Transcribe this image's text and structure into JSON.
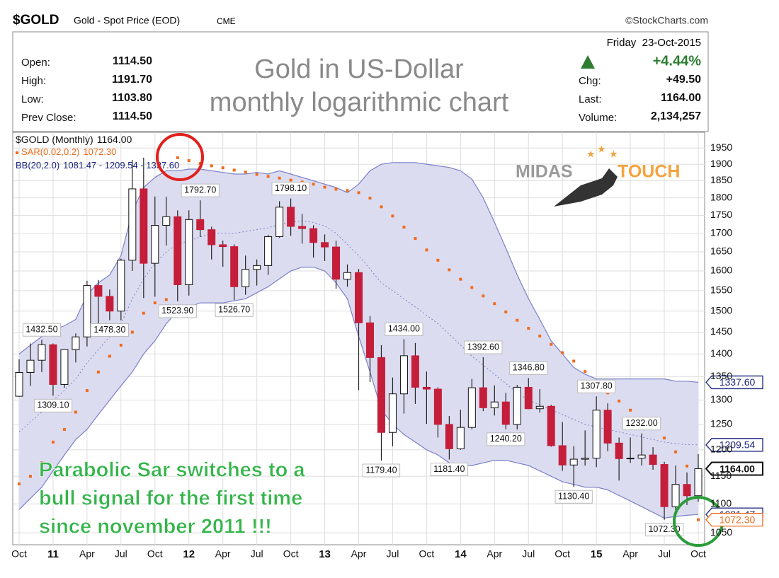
{
  "chart_data": {
    "type": "candlestick",
    "ticker": "$GOLD",
    "subtitle": "Gold - Spot Price (EOD)",
    "exchange": "CME",
    "source": "©StockCharts.com",
    "quote": {
      "date": "Friday  23-Oct-2015",
      "change_pct": "+4.44%",
      "left": [
        {
          "label": "Open:",
          "value": "1114.50"
        },
        {
          "label": "High:",
          "value": "1191.70"
        },
        {
          "label": "Low:",
          "value": "1103.80"
        },
        {
          "label": "Prev Close:",
          "value": "1114.50"
        }
      ],
      "right": [
        {
          "label": "Chg:",
          "value": "+49.50"
        },
        {
          "label": "Last:",
          "value": "1164.00"
        },
        {
          "label": "Volume:",
          "value": "2,134,257"
        }
      ]
    },
    "title_lines": [
      "Gold in US-Dollar",
      "monthly logarithmic chart"
    ],
    "note_lines": [
      "Parabolic Sar switches to a",
      "bull signal for the first time",
      "since november 2011 !!!"
    ],
    "logo": {
      "left": "MIDAS",
      "right": "TOUCH"
    },
    "log_scale": true,
    "grid": true,
    "ylim": [
      1030,
      2000
    ],
    "yticks": [
      1050,
      1100,
      1150,
      1200,
      1250,
      1300,
      1350,
      1400,
      1450,
      1500,
      1550,
      1600,
      1650,
      1700,
      1750,
      1800,
      1850,
      1900,
      1950
    ],
    "categories": [
      "Oct",
      null,
      null,
      "11",
      null,
      null,
      "Apr",
      null,
      null,
      "Jul",
      null,
      null,
      "Oct",
      null,
      null,
      "12",
      null,
      null,
      "Apr",
      null,
      null,
      "Jul",
      null,
      null,
      "Oct",
      null,
      null,
      "13",
      null,
      null,
      "Apr",
      null,
      null,
      "Jul",
      null,
      null,
      "Oct",
      null,
      null,
      "14",
      null,
      null,
      "Apr",
      null,
      null,
      "Jul",
      null,
      null,
      "Oct",
      null,
      null,
      "15",
      null,
      null,
      "Apr",
      null,
      null,
      "Jul",
      null,
      null,
      "Oct"
    ],
    "series": [
      {
        "name": "$GOLD (Monthly)",
        "type": "candlestick",
        "up_color": "#ffffff",
        "down_color": "#c41e3a",
        "last_label": "1164.00",
        "open": [
          1308,
          1359,
          1386,
          1421,
          1333,
          1410,
          1439,
          1563,
          1536,
          1500,
          1628,
          1826,
          1620,
          1722,
          1746,
          1565,
          1738,
          1710,
          1669,
          1664,
          1560,
          1604,
          1614,
          1691,
          1773,
          1719,
          1713,
          1675,
          1663,
          1579,
          1596,
          1472,
          1392,
          1234,
          1313,
          1396,
          1327,
          1323,
          1250,
          1202,
          1244,
          1326,
          1284,
          1296,
          1250,
          1327,
          1282,
          1287,
          1208,
          1171,
          1182,
          1184,
          1279,
          1213,
          1183,
          1184,
          1190,
          1172,
          1095,
          1135,
          1114.5
        ],
        "high": [
          1388,
          1424,
          1432.5,
          1424,
          1411,
          1447,
          1575,
          1577,
          1553,
          1632,
          1913,
          1920,
          1804,
          1803,
          1764,
          1764,
          1792.7,
          1718,
          1680,
          1670,
          1640,
          1630,
          1696,
          1790,
          1798.1,
          1754,
          1722,
          1697,
          1680,
          1617,
          1605,
          1488,
          1420,
          1348,
          1434,
          1425,
          1361,
          1327,
          1267,
          1280,
          1345,
          1392.6,
          1331,
          1315,
          1332,
          1346.8,
          1323,
          1290,
          1255,
          1207,
          1238,
          1307.8,
          1293,
          1224,
          1224,
          1232,
          1205,
          1177,
          1170,
          1157,
          1191.7
        ],
        "low": [
          1307,
          1330,
          1360,
          1309.1,
          1326,
          1381,
          1417,
          1462,
          1478.3,
          1478,
          1600,
          1532,
          1535,
          1667,
          1523.9,
          1538,
          1690,
          1630,
          1611,
          1526.7,
          1540,
          1563,
          1590,
          1688,
          1693,
          1672,
          1635,
          1626,
          1555,
          1560,
          1321,
          1338,
          1179.4,
          1207,
          1272,
          1292,
          1251,
          1224,
          1181.4,
          1200,
          1240,
          1277,
          1268,
          1240.2,
          1240,
          1281,
          1274,
          1206,
          1160,
          1130.4,
          1170,
          1167,
          1197,
          1142,
          1175,
          1170,
          1162,
          1072.3,
          1077,
          1098,
          1103.8
        ],
        "close": [
          1359,
          1386,
          1421,
          1333,
          1410,
          1439,
          1563,
          1536,
          1500,
          1628,
          1826,
          1620,
          1722,
          1746,
          1565,
          1738,
          1710,
          1669,
          1664,
          1560,
          1604,
          1614,
          1691,
          1773,
          1719,
          1713,
          1675,
          1663,
          1579,
          1596,
          1472,
          1392,
          1234,
          1313,
          1396,
          1327,
          1323,
          1250,
          1202,
          1244,
          1326,
          1284,
          1296,
          1250,
          1327,
          1282,
          1287,
          1208,
          1171,
          1182,
          1184,
          1279,
          1213,
          1183,
          1184,
          1190,
          1172,
          1095,
          1135,
          1114.5,
          1164
        ],
        "high_labels": [
          null,
          null,
          "1432.50",
          null,
          null,
          null,
          null,
          null,
          null,
          null,
          null,
          null,
          null,
          null,
          null,
          null,
          "1792.70",
          null,
          null,
          null,
          null,
          null,
          null,
          null,
          "1798.10",
          null,
          null,
          null,
          null,
          null,
          null,
          null,
          null,
          null,
          "1434.00",
          null,
          null,
          null,
          null,
          null,
          null,
          "1392.60",
          null,
          null,
          null,
          "1346.80",
          null,
          null,
          null,
          null,
          null,
          "1307.80",
          null,
          null,
          null,
          "1232.00",
          null,
          null,
          null,
          null,
          null
        ],
        "low_labels": [
          null,
          null,
          null,
          "1309.10",
          null,
          null,
          null,
          null,
          "1478.30",
          null,
          null,
          null,
          null,
          null,
          "1523.90",
          null,
          null,
          null,
          null,
          "1526.70",
          null,
          null,
          null,
          null,
          null,
          null,
          null,
          null,
          null,
          null,
          null,
          null,
          "1179.40",
          null,
          null,
          null,
          null,
          null,
          "1181.40",
          null,
          null,
          null,
          null,
          "1240.20",
          null,
          null,
          null,
          null,
          null,
          "1130.40",
          null,
          null,
          null,
          null,
          null,
          null,
          null,
          "1072.30",
          null,
          null,
          null
        ]
      },
      {
        "name": "SAR(0.02,0.2)",
        "type": "dots",
        "color": "#f26a1b",
        "last_label": "1072.30",
        "values": [
          1136,
          1150,
          1175,
          1215,
          1240,
          1275,
          1320,
          1360,
          1395,
          1420,
          1450,
          1495,
          1520,
          1528,
          1920,
          1911,
          1902,
          1895,
          1889,
          1882,
          1876,
          1869,
          1863,
          1858,
          1852,
          1846,
          1840,
          1831,
          1825,
          1821,
          1815,
          1799,
          1774,
          1748,
          1717,
          1686,
          1655,
          1628,
          1603,
          1579,
          1558,
          1537,
          1518,
          1498,
          1478,
          1459,
          1441,
          1422,
          1403,
          1384,
          1361,
          1338,
          1315,
          1298,
          1279,
          1261,
          1244,
          1223,
          1196,
          1169,
          1072.3
        ]
      },
      {
        "name": "BB(20,2.0)",
        "type": "band",
        "color": "#7b80c8",
        "fill": "#dcdcf0",
        "legend_values": "1081.47 - 1209.54 - 1337.60",
        "upper_label": "1337.60",
        "middle_label": "1209.54",
        "lower_label": "1081.47",
        "upper": [
          1400,
          1420,
          1440,
          1455,
          1465,
          1480,
          1540,
          1570,
          1590,
          1640,
          1760,
          1830,
          1860,
          1880,
          1880,
          1885,
          1885,
          1880,
          1875,
          1870,
          1870,
          1875,
          1870,
          1880,
          1870,
          1860,
          1850,
          1840,
          1830,
          1815,
          1840,
          1880,
          1900,
          1905,
          1905,
          1905,
          1900,
          1895,
          1890,
          1880,
          1855,
          1800,
          1730,
          1660,
          1590,
          1530,
          1480,
          1430,
          1400,
          1370,
          1355,
          1345,
          1345,
          1345,
          1345,
          1345,
          1345,
          1345,
          1340,
          1340,
          1337.6
        ],
        "middle": [
          1235,
          1255,
          1275,
          1300,
          1320,
          1345,
          1380,
          1410,
          1440,
          1470,
          1530,
          1580,
          1620,
          1650,
          1670,
          1680,
          1690,
          1700,
          1700,
          1700,
          1705,
          1710,
          1715,
          1725,
          1730,
          1735,
          1730,
          1720,
          1700,
          1670,
          1640,
          1605,
          1570,
          1550,
          1530,
          1510,
          1490,
          1470,
          1445,
          1420,
          1395,
          1375,
          1355,
          1335,
          1315,
          1300,
          1290,
          1280,
          1270,
          1260,
          1250,
          1245,
          1240,
          1235,
          1230,
          1225,
          1220,
          1215,
          1212,
          1210,
          1209.54
        ],
        "lower": [
          1090,
          1110,
          1130,
          1160,
          1190,
          1220,
          1240,
          1270,
          1300,
          1330,
          1360,
          1400,
          1430,
          1470,
          1500,
          1510,
          1520,
          1520,
          1520,
          1525,
          1530,
          1545,
          1560,
          1580,
          1600,
          1610,
          1610,
          1600,
          1570,
          1530,
          1440,
          1360,
          1280,
          1250,
          1230,
          1215,
          1200,
          1190,
          1175,
          1170,
          1170,
          1175,
          1180,
          1180,
          1175,
          1170,
          1160,
          1150,
          1140,
          1135,
          1130,
          1130,
          1125,
          1115,
          1105,
          1095,
          1085,
          1075,
          1078,
          1080,
          1081.47
        ]
      }
    ]
  }
}
